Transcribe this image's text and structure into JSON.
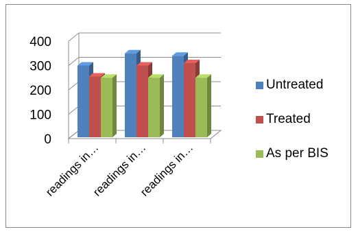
{
  "chart_data": {
    "type": "bar",
    "style": "3d-clustered-column",
    "categories": [
      "readings in…",
      "readings in…",
      "readings in…"
    ],
    "series": [
      {
        "name": "Untreated",
        "values": [
          300,
          350,
          340
        ],
        "color": "#4F81BD"
      },
      {
        "name": "Treated",
        "values": [
          255,
          300,
          310
        ],
        "color": "#C0504D"
      },
      {
        "name": "As per BIS",
        "values": [
          250,
          250,
          250
        ],
        "color": "#9BBB59"
      }
    ],
    "ylim": [
      0,
      400
    ],
    "yticks": [
      0,
      100,
      200,
      300,
      400
    ],
    "grid": true,
    "legend_position": "right"
  }
}
